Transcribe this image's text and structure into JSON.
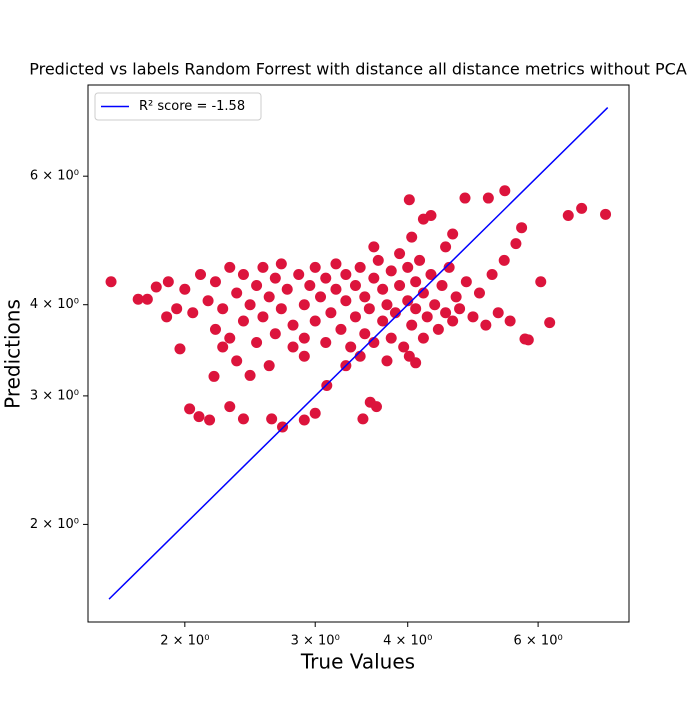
{
  "chart_data": {
    "type": "scatter",
    "title": "Predicted vs labels Random Forrest with distance all distance metrics without PCA",
    "xlabel": "True Values",
    "ylabel": "Predictions",
    "xscale": "log",
    "yscale": "log",
    "xlim": [
      1.48,
      7.96
    ],
    "ylim": [
      1.47,
      8.0
    ],
    "xticks": [
      {
        "value": 2,
        "label": "2 × 10⁰"
      },
      {
        "value": 3,
        "label": "3 × 10⁰"
      },
      {
        "value": 4,
        "label": "4 × 10⁰"
      },
      {
        "value": 6,
        "label": "6 × 10⁰"
      }
    ],
    "yticks": [
      {
        "value": 2,
        "label": "2 × 10⁰"
      },
      {
        "value": 3,
        "label": "3 × 10⁰"
      },
      {
        "value": 4,
        "label": "4 × 10⁰"
      },
      {
        "value": 6,
        "label": "6 × 10⁰"
      }
    ],
    "grid": false,
    "legend": "upper left",
    "series": [
      {
        "kind": "points",
        "color": "#dc143c",
        "x": [
          1.59,
          1.73,
          1.78,
          1.83,
          1.89,
          2.03,
          2.09,
          2.16,
          2.3,
          2.4,
          2.62,
          2.71,
          2.9,
          3.0,
          3.48,
          3.56,
          3.63,
          3.11,
          1.97,
          2.19,
          7.4,
          6.87,
          6.59,
          6.22,
          6.05,
          5.41,
          5.14,
          4.78,
          4.02,
          4.2,
          5.76,
          5.82,
          4.1,
          4.02,
          3.6,
          2.0,
          2.05,
          2.1,
          2.15,
          2.2,
          2.2,
          2.25,
          2.3,
          2.3,
          2.35,
          2.4,
          2.4,
          2.45,
          2.5,
          2.5,
          2.55,
          2.55,
          2.6,
          2.65,
          2.65,
          2.7,
          2.7,
          2.75,
          2.8,
          2.8,
          2.85,
          2.9,
          2.9,
          2.95,
          3.0,
          3.0,
          3.05,
          3.1,
          3.1,
          3.15,
          3.2,
          3.2,
          3.25,
          3.3,
          3.3,
          3.35,
          3.4,
          3.4,
          3.45,
          3.5,
          3.5,
          3.55,
          3.6,
          3.6,
          3.65,
          3.7,
          3.7,
          3.75,
          3.8,
          3.8,
          3.85,
          3.9,
          3.9,
          3.95,
          4.0,
          4.0,
          4.05,
          4.1,
          4.1,
          4.15,
          4.2,
          4.2,
          4.25,
          4.3,
          4.35,
          4.4,
          4.45,
          4.5,
          4.55,
          4.6,
          4.65,
          4.7,
          4.8,
          4.9,
          5.0,
          5.1,
          5.2,
          5.3,
          5.4,
          5.5,
          5.6,
          5.7,
          4.5,
          4.6,
          4.3,
          4.05,
          3.3,
          3.45,
          3.75,
          2.6,
          2.35,
          2.45,
          2.9,
          1.9,
          1.95,
          2.25
        ],
        "y": [
          4.3,
          4.07,
          4.07,
          4.23,
          3.85,
          2.88,
          2.81,
          2.78,
          2.9,
          2.79,
          2.79,
          2.72,
          2.78,
          2.84,
          2.79,
          2.94,
          2.9,
          3.1,
          3.48,
          3.19,
          5.32,
          5.42,
          5.3,
          3.78,
          4.3,
          5.73,
          5.6,
          5.6,
          5.57,
          5.24,
          3.59,
          3.58,
          3.33,
          3.4,
          4.8,
          4.2,
          3.9,
          4.4,
          4.05,
          3.7,
          4.3,
          3.95,
          4.5,
          3.6,
          4.15,
          3.8,
          4.4,
          4.0,
          3.55,
          4.25,
          4.5,
          3.85,
          4.1,
          3.65,
          4.35,
          3.95,
          4.55,
          4.2,
          3.75,
          3.5,
          4.4,
          4.0,
          3.6,
          4.25,
          4.5,
          3.8,
          4.1,
          3.55,
          4.35,
          3.9,
          4.2,
          4.55,
          3.7,
          4.05,
          4.4,
          3.5,
          3.85,
          4.25,
          4.5,
          3.65,
          4.1,
          3.95,
          4.35,
          3.55,
          4.6,
          3.8,
          4.2,
          4.0,
          3.6,
          4.45,
          3.9,
          4.25,
          4.7,
          3.5,
          4.05,
          4.5,
          3.75,
          4.3,
          3.95,
          4.6,
          3.6,
          4.15,
          3.85,
          4.4,
          4.0,
          3.7,
          4.25,
          3.9,
          4.5,
          3.8,
          4.1,
          3.95,
          4.3,
          3.85,
          4.15,
          3.75,
          4.4,
          3.9,
          4.6,
          3.8,
          4.85,
          5.1,
          4.8,
          5.0,
          5.3,
          4.95,
          3.3,
          3.4,
          3.35,
          3.3,
          3.35,
          3.2,
          3.4,
          4.3,
          3.95,
          3.5
        ]
      },
      {
        "kind": "line",
        "name": "R² score = -1.58",
        "color": "#0000ff",
        "x": [
          1.58,
          7.45
        ],
        "y": [
          1.58,
          7.45
        ]
      }
    ]
  }
}
